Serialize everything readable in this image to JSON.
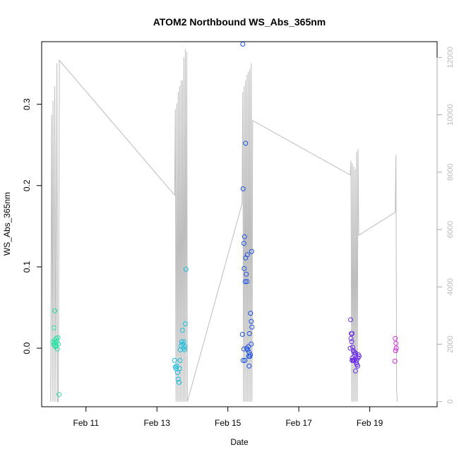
{
  "chart_data": {
    "type": "scatter",
    "title": "ATOM2 Northbound WS_Abs_365nm",
    "xlabel": "Date",
    "ylabel": "WS_Abs_365nm",
    "x_unit": "days since Feb 10 00:00",
    "xlim": [
      -0.25,
      10.9
    ],
    "ylim": [
      -0.072,
      0.377
    ],
    "y2lim": [
      -180,
      12550
    ],
    "x_ticks": [
      {
        "value": 1,
        "label": "Feb 11"
      },
      {
        "value": 3,
        "label": "Feb 13"
      },
      {
        "value": 5,
        "label": "Feb 15"
      },
      {
        "value": 7,
        "label": "Feb 17"
      },
      {
        "value": 9,
        "label": "Feb 19"
      }
    ],
    "y_ticks": [
      {
        "value": 0.0,
        "label": "0.0"
      },
      {
        "value": 0.1,
        "label": "0.1"
      },
      {
        "value": 0.2,
        "label": "0.2"
      },
      {
        "value": 0.3,
        "label": "0.3"
      }
    ],
    "y2_ticks": [
      {
        "value": 0,
        "label": "0"
      },
      {
        "value": 2000,
        "label": "2000"
      },
      {
        "value": 4000,
        "label": "4000"
      },
      {
        "value": 6000,
        "label": "6000"
      },
      {
        "value": 8000,
        "label": "8000"
      },
      {
        "value": 10000,
        "label": "10000"
      },
      {
        "value": 12000,
        "label": "12000"
      }
    ],
    "points": [
      {
        "x": 0.12,
        "y": 0.046,
        "color": "#22E2A4"
      },
      {
        "x": 0.1,
        "y": 0.025,
        "color": "#22E2A4"
      },
      {
        "x": 0.07,
        "y": 0.008,
        "color": "#22E2A4"
      },
      {
        "x": 0.09,
        "y": 0.004,
        "color": "#22E2A4"
      },
      {
        "x": 0.11,
        "y": 0.006,
        "color": "#22E2A4"
      },
      {
        "x": 0.13,
        "y": 0.01,
        "color": "#22E2A4"
      },
      {
        "x": 0.15,
        "y": 0.003,
        "color": "#22E2A4"
      },
      {
        "x": 0.16,
        "y": 0.012,
        "color": "#22E2A4"
      },
      {
        "x": 0.18,
        "y": 0.008,
        "color": "#22E2A4"
      },
      {
        "x": 0.19,
        "y": -0.001,
        "color": "#22E2A4"
      },
      {
        "x": 0.21,
        "y": 0.013,
        "color": "#22E2A4"
      },
      {
        "x": 0.22,
        "y": 0.005,
        "color": "#22E2A4"
      },
      {
        "x": 0.14,
        "y": 0.002,
        "color": "#22E2A4"
      },
      {
        "x": 0.24,
        "y": -0.057,
        "color": "#22E2A4"
      },
      {
        "x": 3.5,
        "y": -0.015,
        "color": "#17BEE0"
      },
      {
        "x": 3.52,
        "y": -0.023,
        "color": "#17BEE0"
      },
      {
        "x": 3.54,
        "y": -0.025,
        "color": "#17BEE0"
      },
      {
        "x": 3.56,
        "y": -0.022,
        "color": "#17BEE0"
      },
      {
        "x": 3.58,
        "y": -0.03,
        "color": "#17BEE0"
      },
      {
        "x": 3.6,
        "y": -0.038,
        "color": "#17BEE0"
      },
      {
        "x": 3.62,
        "y": -0.042,
        "color": "#17BEE0"
      },
      {
        "x": 3.64,
        "y": -0.025,
        "color": "#17BEE0"
      },
      {
        "x": 3.65,
        "y": -0.015,
        "color": "#17BEE0"
      },
      {
        "x": 3.66,
        "y": -0.002,
        "color": "#17BEE0"
      },
      {
        "x": 3.68,
        "y": 0.003,
        "color": "#17BEE0"
      },
      {
        "x": 3.7,
        "y": 0.008,
        "color": "#17BEE0"
      },
      {
        "x": 3.72,
        "y": 0.022,
        "color": "#17BEE0"
      },
      {
        "x": 3.73,
        "y": 0.005,
        "color": "#17BEE0"
      },
      {
        "x": 3.75,
        "y": 0.0,
        "color": "#17BEE0"
      },
      {
        "x": 3.76,
        "y": 0.008,
        "color": "#17BEE0"
      },
      {
        "x": 3.78,
        "y": -0.002,
        "color": "#17BEE0"
      },
      {
        "x": 3.8,
        "y": 0.03,
        "color": "#17BEE0"
      },
      {
        "x": 3.82,
        "y": 0.097,
        "color": "#17BEE0"
      },
      {
        "x": 3.79,
        "y": 0.002,
        "color": "#17BEE0"
      },
      {
        "x": 5.42,
        "y": 0.374,
        "color": "#1D52E6"
      },
      {
        "x": 5.5,
        "y": 0.252,
        "color": "#1D52E6"
      },
      {
        "x": 5.43,
        "y": 0.196,
        "color": "#1D52E6"
      },
      {
        "x": 5.47,
        "y": 0.137,
        "color": "#1D52E6"
      },
      {
        "x": 5.45,
        "y": 0.129,
        "color": "#1D52E6"
      },
      {
        "x": 5.67,
        "y": 0.119,
        "color": "#1D52E6"
      },
      {
        "x": 5.55,
        "y": 0.115,
        "color": "#1D52E6"
      },
      {
        "x": 5.5,
        "y": 0.111,
        "color": "#1D52E6"
      },
      {
        "x": 5.46,
        "y": 0.098,
        "color": "#1D52E6"
      },
      {
        "x": 5.52,
        "y": 0.091,
        "color": "#1D52E6"
      },
      {
        "x": 5.49,
        "y": 0.082,
        "color": "#1D52E6"
      },
      {
        "x": 5.54,
        "y": 0.082,
        "color": "#1D52E6"
      },
      {
        "x": 5.64,
        "y": 0.043,
        "color": "#1D52E6"
      },
      {
        "x": 5.66,
        "y": 0.033,
        "color": "#1D52E6"
      },
      {
        "x": 5.68,
        "y": 0.026,
        "color": "#1D52E6"
      },
      {
        "x": 5.41,
        "y": 0.017,
        "color": "#1D52E6"
      },
      {
        "x": 5.61,
        "y": 0.018,
        "color": "#1D52E6"
      },
      {
        "x": 5.58,
        "y": 0.002,
        "color": "#1D52E6"
      },
      {
        "x": 5.66,
        "y": 0.005,
        "color": "#1D52E6"
      },
      {
        "x": 5.45,
        "y": -0.001,
        "color": "#1D52E6"
      },
      {
        "x": 5.53,
        "y": 0.0,
        "color": "#1D52E6"
      },
      {
        "x": 5.56,
        "y": -0.002,
        "color": "#1D52E6"
      },
      {
        "x": 5.6,
        "y": -0.005,
        "color": "#1D52E6"
      },
      {
        "x": 5.62,
        "y": -0.01,
        "color": "#1D52E6"
      },
      {
        "x": 5.64,
        "y": -0.008,
        "color": "#1D52E6"
      },
      {
        "x": 5.59,
        "y": -0.01,
        "color": "#1D52E6"
      },
      {
        "x": 5.43,
        "y": -0.015,
        "color": "#1D52E6"
      },
      {
        "x": 5.48,
        "y": -0.015,
        "color": "#1D52E6"
      },
      {
        "x": 5.6,
        "y": -0.022,
        "color": "#1D52E6"
      },
      {
        "x": 8.46,
        "y": 0.035,
        "color": "#6A2BE6"
      },
      {
        "x": 8.48,
        "y": 0.018,
        "color": "#6A2BE6"
      },
      {
        "x": 8.5,
        "y": 0.018,
        "color": "#6A2BE6"
      },
      {
        "x": 8.47,
        "y": 0.012,
        "color": "#6A2BE6"
      },
      {
        "x": 8.49,
        "y": 0.008,
        "color": "#6A2BE6"
      },
      {
        "x": 8.45,
        "y": 0.0,
        "color": "#6A2BE6"
      },
      {
        "x": 8.52,
        "y": 0.001,
        "color": "#6A2BE6"
      },
      {
        "x": 8.54,
        "y": -0.003,
        "color": "#6A2BE6"
      },
      {
        "x": 8.56,
        "y": -0.005,
        "color": "#6A2BE6"
      },
      {
        "x": 8.58,
        "y": -0.008,
        "color": "#6A2BE6"
      },
      {
        "x": 8.6,
        "y": -0.006,
        "color": "#6A2BE6"
      },
      {
        "x": 8.51,
        "y": -0.012,
        "color": "#6A2BE6"
      },
      {
        "x": 8.53,
        "y": -0.015,
        "color": "#6A2BE6"
      },
      {
        "x": 8.55,
        "y": -0.015,
        "color": "#6A2BE6"
      },
      {
        "x": 8.57,
        "y": -0.014,
        "color": "#6A2BE6"
      },
      {
        "x": 8.62,
        "y": -0.018,
        "color": "#6A2BE6"
      },
      {
        "x": 8.64,
        "y": -0.02,
        "color": "#6A2BE6"
      },
      {
        "x": 8.66,
        "y": -0.022,
        "color": "#6A2BE6"
      },
      {
        "x": 8.68,
        "y": -0.008,
        "color": "#6A2BE6"
      },
      {
        "x": 8.7,
        "y": -0.01,
        "color": "#6A2BE6"
      },
      {
        "x": 8.6,
        "y": -0.028,
        "color": "#6A2BE6"
      },
      {
        "x": 8.63,
        "y": -0.015,
        "color": "#6A2BE6"
      },
      {
        "x": 8.67,
        "y": -0.012,
        "color": "#6A2BE6"
      },
      {
        "x": 8.5,
        "y": -0.015,
        "color": "#6A2BE6"
      },
      {
        "x": 9.72,
        "y": 0.012,
        "color": "#D52BE0"
      },
      {
        "x": 9.74,
        "y": 0.006,
        "color": "#D52BE0"
      },
      {
        "x": 9.75,
        "y": 0.0,
        "color": "#D52BE0"
      },
      {
        "x": 9.73,
        "y": -0.003,
        "color": "#D52BE0"
      },
      {
        "x": 9.71,
        "y": -0.016,
        "color": "#D52BE0"
      }
    ],
    "series": [
      {
        "name": "secondary axis (grey line)",
        "axis": "right",
        "color": "#BDBDBD",
        "x": [
          0.0,
          0.03,
          0.05,
          0.07,
          0.1,
          0.12,
          0.15,
          0.18,
          0.2,
          0.22,
          0.25,
          3.5,
          3.52,
          3.54,
          3.56,
          3.58,
          3.6,
          3.62,
          3.64,
          3.66,
          3.68,
          3.7,
          3.72,
          3.74,
          3.76,
          3.78,
          3.8,
          3.82,
          3.84,
          3.86,
          5.4,
          5.42,
          5.44,
          5.46,
          5.48,
          5.5,
          5.52,
          5.54,
          5.56,
          5.58,
          5.6,
          5.62,
          5.64,
          5.66,
          5.68,
          5.7,
          8.45,
          8.47,
          8.49,
          8.51,
          8.53,
          8.55,
          8.57,
          8.59,
          8.61,
          8.63,
          8.65,
          8.67,
          8.69,
          9.72,
          9.74,
          9.76,
          9.78
        ],
        "y": [
          0,
          10000,
          0,
          10500,
          0,
          11000,
          0,
          11800,
          0,
          0,
          11900,
          7200,
          10200,
          0,
          10400,
          0,
          10800,
          0,
          11000,
          0,
          11200,
          0,
          11200,
          0,
          12000,
          0,
          12300,
          0,
          12200,
          0,
          6900,
          10800,
          0,
          11000,
          0,
          11200,
          0,
          11400,
          0,
          11500,
          0,
          11600,
          0,
          11800,
          0,
          9800,
          7900,
          8400,
          0,
          8300,
          0,
          8200,
          0,
          8100,
          0,
          8700,
          0,
          8800,
          5800,
          6600,
          8600,
          400,
          0
        ]
      }
    ]
  }
}
